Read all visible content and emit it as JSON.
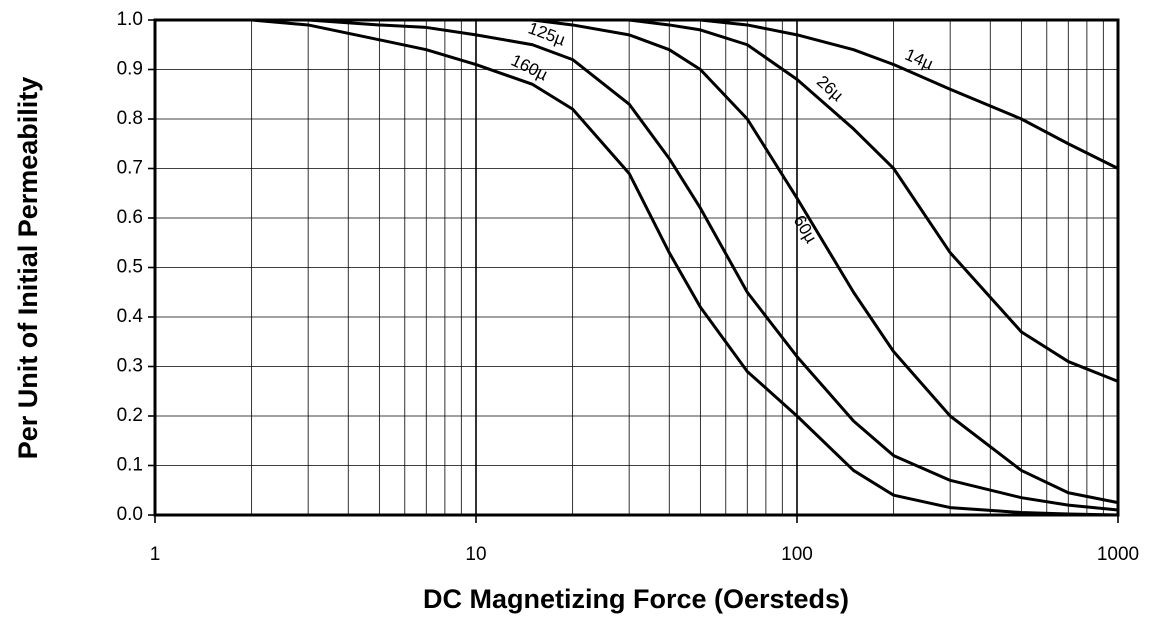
{
  "chart_data": {
    "type": "line",
    "xlabel": "DC Magnetizing Force (Oersteds)",
    "ylabel": "Per Unit of Initial Permeability",
    "xscale": "log",
    "grid": true,
    "color": "#000000",
    "x": [
      1,
      2,
      3,
      5,
      7,
      10,
      15,
      20,
      30,
      40,
      50,
      70,
      100,
      150,
      200,
      300,
      500,
      700,
      1000
    ],
    "series": [
      {
        "name": "14µ",
        "color": "#000000",
        "values": [
          1.0,
          1.0,
          1.0,
          1.0,
          1.0,
          1.0,
          1.0,
          1.0,
          1.0,
          1.0,
          1.0,
          0.99,
          0.97,
          0.94,
          0.91,
          0.86,
          0.8,
          0.75,
          0.7
        ]
      },
      {
        "name": "26µ",
        "color": "#000000",
        "values": [
          1.0,
          1.0,
          1.0,
          1.0,
          1.0,
          1.0,
          1.0,
          1.0,
          1.0,
          0.99,
          0.98,
          0.95,
          0.88,
          0.78,
          0.7,
          0.53,
          0.37,
          0.31,
          0.27
        ]
      },
      {
        "name": "60µ",
        "color": "#000000",
        "values": [
          1.0,
          1.0,
          1.0,
          1.0,
          1.0,
          1.0,
          1.0,
          0.99,
          0.97,
          0.94,
          0.9,
          0.8,
          0.64,
          0.45,
          0.33,
          0.2,
          0.09,
          0.045,
          0.025
        ]
      },
      {
        "name": "125µ",
        "color": "#000000",
        "values": [
          1.0,
          1.0,
          1.0,
          0.99,
          0.985,
          0.97,
          0.95,
          0.92,
          0.83,
          0.72,
          0.62,
          0.45,
          0.32,
          0.19,
          0.12,
          0.07,
          0.035,
          0.02,
          0.01
        ]
      },
      {
        "name": "160µ",
        "color": "#000000",
        "values": [
          1.0,
          1.0,
          0.99,
          0.96,
          0.94,
          0.91,
          0.87,
          0.82,
          0.69,
          0.53,
          0.42,
          0.29,
          0.2,
          0.09,
          0.04,
          0.015,
          0.005,
          0.002,
          0.0
        ]
      }
    ],
    "xlim": [
      1,
      1000
    ],
    "xticks": [
      1,
      10,
      100,
      1000
    ],
    "xminor": [
      2,
      3,
      4,
      5,
      6,
      7,
      8,
      9,
      20,
      30,
      40,
      50,
      60,
      70,
      80,
      90,
      200,
      300,
      400,
      500,
      600,
      700,
      800,
      900
    ],
    "ylim": [
      0,
      1
    ],
    "yticks": [
      {
        "value": 0,
        "label": "0.0"
      },
      0.1,
      0.2,
      0.3,
      0.4,
      0.5,
      0.6,
      0.7,
      0.8,
      0.9,
      {
        "value": 1,
        "label": "1.0"
      }
    ]
  }
}
